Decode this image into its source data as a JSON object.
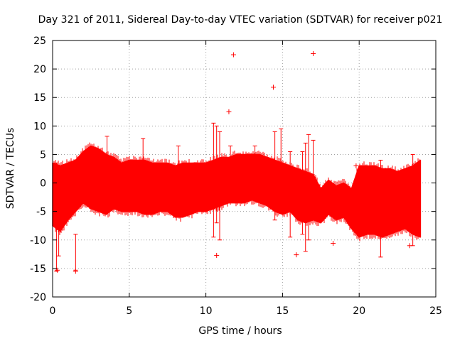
{
  "chart_data": {
    "type": "scatter",
    "title": "Day 321 of 2011, Sidereal Day-to-day VTEC variation (SDTVAR) for receiver p021",
    "xlabel": "GPS time / hours",
    "ylabel": "SDTVAR / TECUs",
    "xlim": [
      0,
      25
    ],
    "ylim": [
      -20,
      25
    ],
    "x_ticks": [
      0,
      5,
      10,
      15,
      20,
      25
    ],
    "y_ticks": [
      -20,
      -15,
      -10,
      -5,
      0,
      5,
      10,
      15,
      20,
      25
    ],
    "grid": true,
    "marker": "+",
    "color": "#ff0000",
    "series": [
      {
        "name": "SDTVAR",
        "band_x": [
          0,
          0.5,
          1,
          1.5,
          2,
          2.5,
          3,
          3.5,
          4,
          4.5,
          5,
          5.5,
          6,
          6.5,
          7,
          7.5,
          8,
          8.5,
          9,
          9.5,
          10,
          10.5,
          11,
          11.5,
          12,
          12.5,
          13,
          13.5,
          14,
          14.5,
          15,
          15.5,
          16,
          16.5,
          17,
          17.5,
          18,
          18.5,
          19,
          19.5,
          20,
          20.5,
          21,
          21.5,
          22,
          22.5,
          23,
          23.5,
          24
        ],
        "band_upper": [
          3.5,
          3.0,
          3.5,
          4.0,
          5.5,
          6.5,
          6.0,
          5.0,
          4.5,
          3.5,
          4.0,
          4.0,
          4.0,
          3.5,
          3.5,
          3.5,
          3.0,
          3.5,
          3.5,
          3.5,
          3.5,
          4.0,
          4.5,
          4.5,
          5.0,
          5.0,
          5.0,
          5.0,
          4.5,
          4.0,
          3.5,
          3.0,
          2.5,
          2.0,
          1.5,
          -1.0,
          0.5,
          -0.5,
          0.0,
          -1.0,
          3.0,
          3.0,
          3.0,
          2.5,
          2.5,
          2.0,
          2.5,
          3.0,
          4.0
        ],
        "band_lower": [
          -7.5,
          -8.5,
          -6.5,
          -5.0,
          -3.5,
          -4.5,
          -5.0,
          -5.5,
          -4.5,
          -5.0,
          -5.0,
          -5.0,
          -5.5,
          -5.5,
          -5.0,
          -5.0,
          -6.0,
          -6.0,
          -5.5,
          -5.0,
          -5.0,
          -4.5,
          -4.0,
          -3.5,
          -3.5,
          -3.5,
          -3.0,
          -3.5,
          -4.0,
          -5.0,
          -5.5,
          -5.0,
          -6.5,
          -7.0,
          -6.5,
          -7.0,
          -5.5,
          -6.5,
          -6.0,
          -8.0,
          -9.5,
          -9.0,
          -9.0,
          -9.5,
          -9.0,
          -8.5,
          -8.0,
          -9.0,
          -9.5
        ],
        "spikes": [
          {
            "x": 0.25,
            "top": 3.5,
            "bottom": -15.5
          },
          {
            "x": 0.4,
            "top": 2.0,
            "bottom": -12.8
          },
          {
            "x": 1.5,
            "top": -9.0,
            "bottom": -15.3
          },
          {
            "x": 3.55,
            "top": 8.2,
            "bottom": 0
          },
          {
            "x": 5.9,
            "top": 7.8,
            "bottom": 0
          },
          {
            "x": 8.2,
            "top": 6.5,
            "bottom": 0
          },
          {
            "x": 10.5,
            "top": 10.5,
            "bottom": -9.5
          },
          {
            "x": 10.7,
            "top": 10.0,
            "bottom": -7.0
          },
          {
            "x": 10.9,
            "top": 9.0,
            "bottom": -10.0
          },
          {
            "x": 11.6,
            "top": 6.5,
            "bottom": 0
          },
          {
            "x": 13.2,
            "top": 6.5,
            "bottom": 0
          },
          {
            "x": 14.5,
            "top": 9.0,
            "bottom": -6.5
          },
          {
            "x": 14.9,
            "top": 9.5,
            "bottom": -4.0
          },
          {
            "x": 15.5,
            "top": 5.5,
            "bottom": -9.5
          },
          {
            "x": 16.3,
            "top": 5.5,
            "bottom": -9.0
          },
          {
            "x": 16.5,
            "top": 7.0,
            "bottom": -12.0
          },
          {
            "x": 16.7,
            "top": 8.5,
            "bottom": -10.0
          },
          {
            "x": 17.0,
            "top": 7.5,
            "bottom": -5.0
          },
          {
            "x": 21.4,
            "top": 4.0,
            "bottom": -13.0
          },
          {
            "x": 23.5,
            "top": 5.0,
            "bottom": -11.0
          }
        ],
        "outliers_x": [
          0.3,
          1.5,
          11.8,
          17.0,
          11.5,
          14.4,
          15.9,
          10.7,
          18.3,
          19.8,
          23.3
        ],
        "outliers_y": [
          -15.3,
          -15.5,
          22.5,
          22.7,
          12.5,
          16.8,
          -12.6,
          -12.7,
          -10.6,
          3.0,
          -11.0
        ]
      }
    ]
  }
}
